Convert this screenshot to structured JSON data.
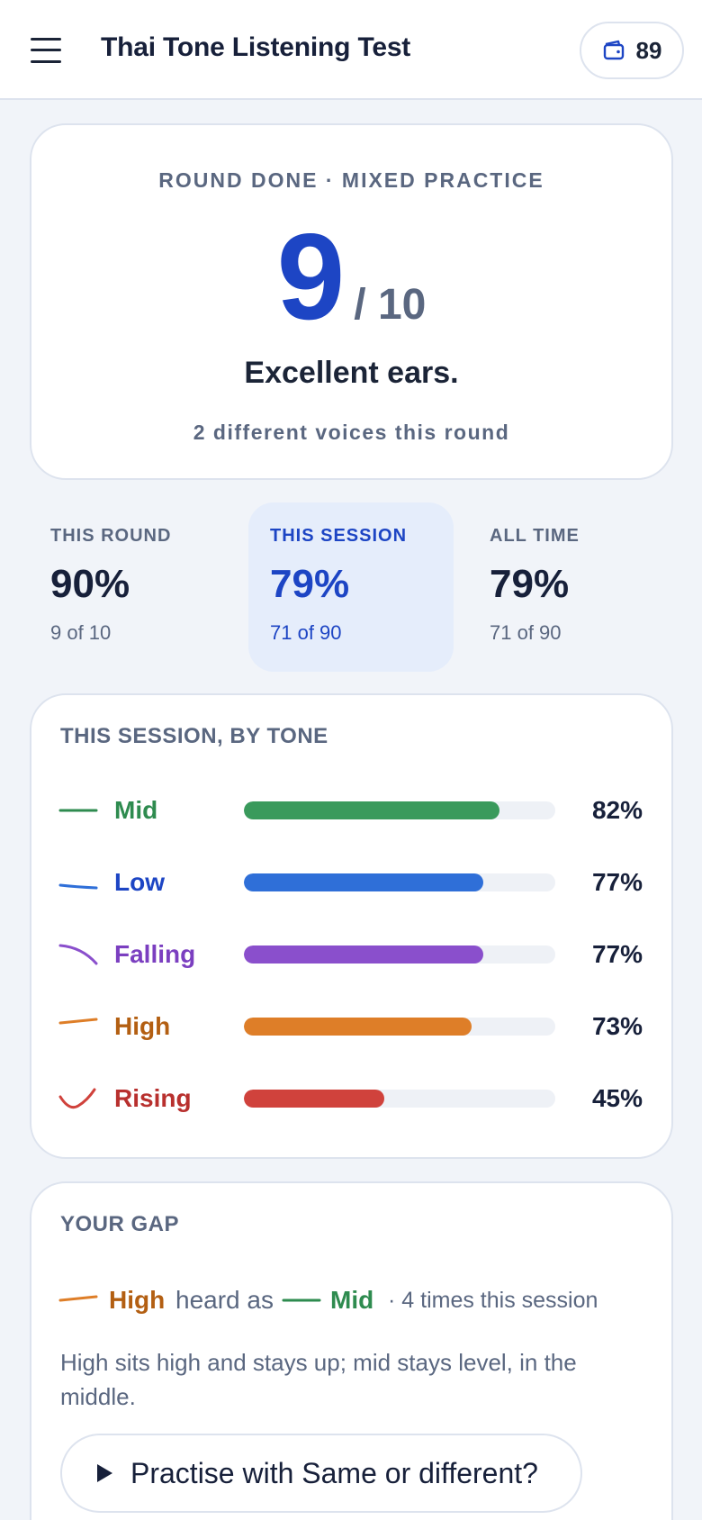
{
  "header": {
    "title": "Thai Tone Listening Test",
    "coins": "89"
  },
  "score": {
    "eyebrow": "ROUND DONE · MIXED PRACTICE",
    "correct": "9",
    "total": "/ 10",
    "verdict": "Excellent ears.",
    "voices": "2 different voices this round"
  },
  "stats": [
    {
      "label": "THIS ROUND",
      "percent": "90%",
      "detail": "9 of 10",
      "active": false
    },
    {
      "label": "THIS SESSION",
      "percent": "79%",
      "detail": "71 of 90",
      "active": true
    },
    {
      "label": "ALL TIME",
      "percent": "79%",
      "detail": "71 of 90",
      "active": false
    }
  ],
  "tones": {
    "title": "THIS SESSION, BY TONE",
    "items": [
      {
        "name": "Mid",
        "value": 82,
        "label": "82%",
        "color": "#2e8b4f",
        "bar": "#3a9a5c",
        "icon": "mid-tone-icon"
      },
      {
        "name": "Low",
        "value": 77,
        "label": "77%",
        "color": "#1d45c4",
        "bar": "#2f6fd8",
        "icon": "low-tone-icon"
      },
      {
        "name": "Falling",
        "value": 77,
        "label": "77%",
        "color": "#7b3fc0",
        "bar": "#8a4fcc",
        "icon": "falling-tone-icon"
      },
      {
        "name": "High",
        "value": 73,
        "label": "73%",
        "color": "#b35f12",
        "bar": "#de7e28",
        "icon": "high-tone-icon"
      },
      {
        "name": "Rising",
        "value": 45,
        "label": "45%",
        "color": "#b8302e",
        "bar": "#d0423c",
        "icon": "rising-tone-icon"
      }
    ]
  },
  "gap": {
    "title": "YOUR GAP",
    "from": "High",
    "heard_as": "heard as",
    "to": "Mid",
    "count": "· 4 times this session",
    "description": "High sits high and stays up; mid stays level, in the middle.",
    "button_label": "Practise with Same or different?"
  }
}
